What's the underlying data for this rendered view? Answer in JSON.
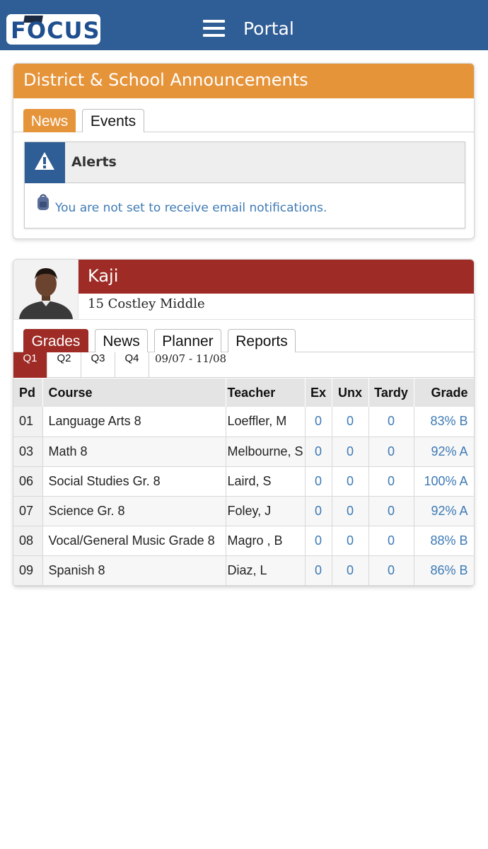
{
  "app": {
    "logo_text": "FOCUS",
    "title": "Portal"
  },
  "colors": {
    "topbar": "#2f5d95",
    "announcement_header": "#e6943a",
    "student_accent": "#9e2b25",
    "link_blue": "#3d7ab5"
  },
  "announcements": {
    "title": "District & School Announcements",
    "tabs": [
      {
        "label": "News",
        "active": true
      },
      {
        "label": "Events",
        "active": false
      }
    ],
    "alert": {
      "title": "Alerts",
      "icon": "warning-icon",
      "message": "You are not set to receive email notifications."
    }
  },
  "student": {
    "name": "Kaji",
    "school": "15 Costley Middle",
    "tabs": [
      {
        "label": "Grades",
        "active": true
      },
      {
        "label": "News",
        "active": false
      },
      {
        "label": "Planner",
        "active": false
      },
      {
        "label": "Reports",
        "active": false
      }
    ],
    "quarters": [
      {
        "label": "Q1",
        "active": true
      },
      {
        "label": "Q2",
        "active": false
      },
      {
        "label": "Q3",
        "active": false
      },
      {
        "label": "Q4",
        "active": false
      }
    ],
    "date_range": "09/07 - 11/08",
    "table": {
      "headers": [
        "Pd",
        "Course",
        "Teacher",
        "Ex",
        "Unx",
        "Tardy",
        "Grade"
      ],
      "rows": [
        {
          "pd": "01",
          "course": "Language Arts 8",
          "teacher": "Loeffler, M",
          "ex": "0",
          "unx": "0",
          "tardy": "0",
          "grade": "83% B"
        },
        {
          "pd": "03",
          "course": "Math 8",
          "teacher": "Melbourne, S",
          "ex": "0",
          "unx": "0",
          "tardy": "0",
          "grade": "92% A"
        },
        {
          "pd": "06",
          "course": "Social Studies Gr. 8",
          "teacher": "Laird, S",
          "ex": "0",
          "unx": "0",
          "tardy": "0",
          "grade": "100% A"
        },
        {
          "pd": "07",
          "course": "Science Gr. 8",
          "teacher": "Foley, J",
          "ex": "0",
          "unx": "0",
          "tardy": "0",
          "grade": "92% A"
        },
        {
          "pd": "08",
          "course": "Vocal/General Music Grade 8",
          "teacher": "Magro , B",
          "ex": "0",
          "unx": "0",
          "tardy": "0",
          "grade": "88% B"
        },
        {
          "pd": "09",
          "course": "Spanish 8",
          "teacher": "Diaz, L",
          "ex": "0",
          "unx": "0",
          "tardy": "0",
          "grade": "86% B"
        }
      ]
    }
  }
}
